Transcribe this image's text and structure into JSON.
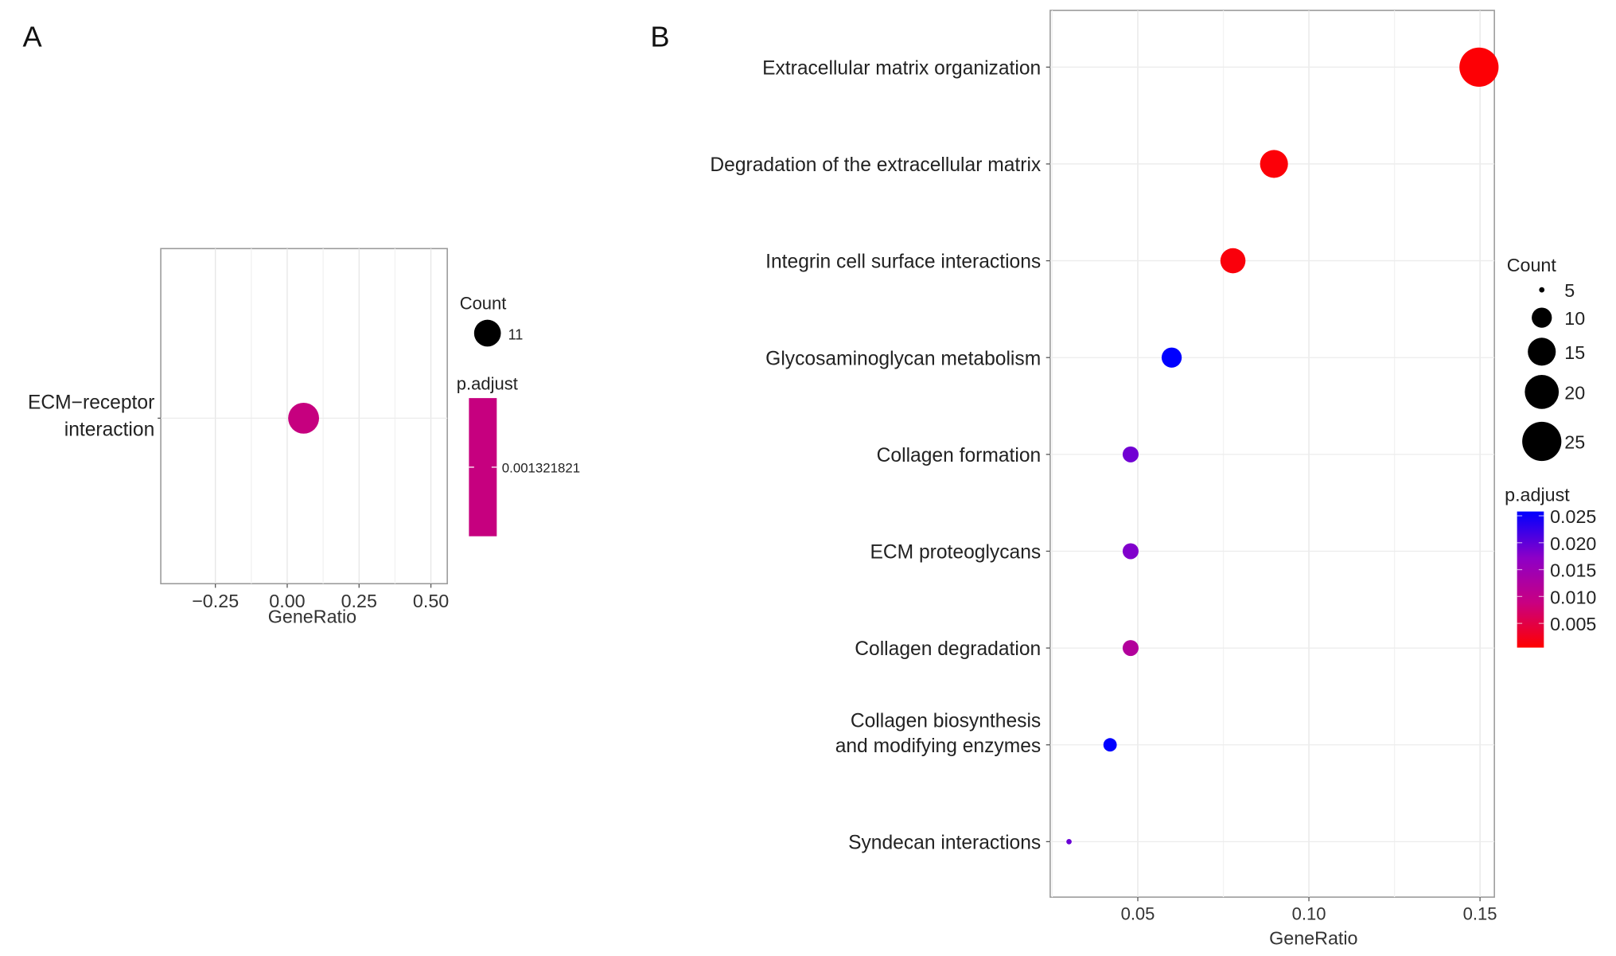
{
  "chart_data": [
    {
      "panel": "A",
      "type": "scatter",
      "xlabel": "GeneRatio",
      "xlim": [
        -0.44,
        0.557
      ],
      "xticks": [
        -0.25,
        0.0,
        0.25,
        0.5
      ],
      "xtick_labels": [
        "−0.25",
        "0.00",
        "0.25",
        "0.50"
      ],
      "grid": true,
      "categories": [
        "ECM−receptor interaction"
      ],
      "category_lines": [
        [
          "ECM−receptor",
          "interaction"
        ]
      ],
      "gene_ratio": [
        0.057
      ],
      "count": [
        11
      ],
      "p_adjust": [
        0.001321821
      ],
      "point_color": "#C6007F",
      "legend": {
        "count_title": "Count",
        "count_values": [
          11
        ],
        "count_labels": [
          "11"
        ],
        "padj_title": "p.adjust",
        "padj_labels": [
          "0.001321821"
        ]
      }
    },
    {
      "panel": "B",
      "type": "scatter",
      "xlabel": "GeneRatio",
      "xlim": [
        0.0244,
        0.1542
      ],
      "xticks": [
        0.05,
        0.1,
        0.15
      ],
      "xtick_labels": [
        "0.05",
        "0.10",
        "0.15"
      ],
      "grid": true,
      "categories": [
        "Extracellular matrix organization",
        "Degradation of the extracellular matrix",
        "Integrin cell surface interactions",
        "Glycosaminoglycan metabolism",
        "Collagen formation",
        "ECM proteoglycans",
        "Collagen degradation",
        "Collagen biosynthesis and modifying enzymes",
        "Syndecan interactions"
      ],
      "category_lines": [
        [
          "Extracellular matrix organization"
        ],
        [
          "Degradation of the extracellular matrix"
        ],
        [
          "Integrin cell surface interactions"
        ],
        [
          "Glycosaminoglycan metabolism"
        ],
        [
          "Collagen formation"
        ],
        [
          "ECM proteoglycans"
        ],
        [
          "Collagen degradation"
        ],
        [
          "Collagen biosynthesis",
          "and modifying enzymes"
        ],
        [
          "Syndecan interactions"
        ]
      ],
      "gene_ratio": [
        0.1497,
        0.0898,
        0.0778,
        0.0599,
        0.0479,
        0.0479,
        0.0479,
        0.0419,
        0.0299
      ],
      "count": [
        25,
        15,
        13,
        10,
        8,
        8,
        8,
        7,
        5
      ],
      "p_adjust": [
        0.0008,
        0.001,
        0.0012,
        0.026,
        0.019,
        0.018,
        0.012,
        0.026,
        0.0195
      ],
      "color_low": "#FF0000",
      "color_high": "#0000FF",
      "padj_range": [
        0.0005,
        0.0258
      ],
      "legend": {
        "count_title": "Count",
        "count_values": [
          5,
          10,
          15,
          20,
          25
        ],
        "count_labels": [
          "5",
          "10",
          "15",
          "20",
          "25"
        ],
        "padj_title": "p.adjust",
        "padj_ticks": [
          0.025,
          0.02,
          0.015,
          0.01,
          0.005
        ],
        "padj_labels": [
          "0.025",
          "0.020",
          "0.015",
          "0.010",
          "0.005"
        ]
      }
    }
  ],
  "panel_labels": [
    "A",
    "B"
  ]
}
